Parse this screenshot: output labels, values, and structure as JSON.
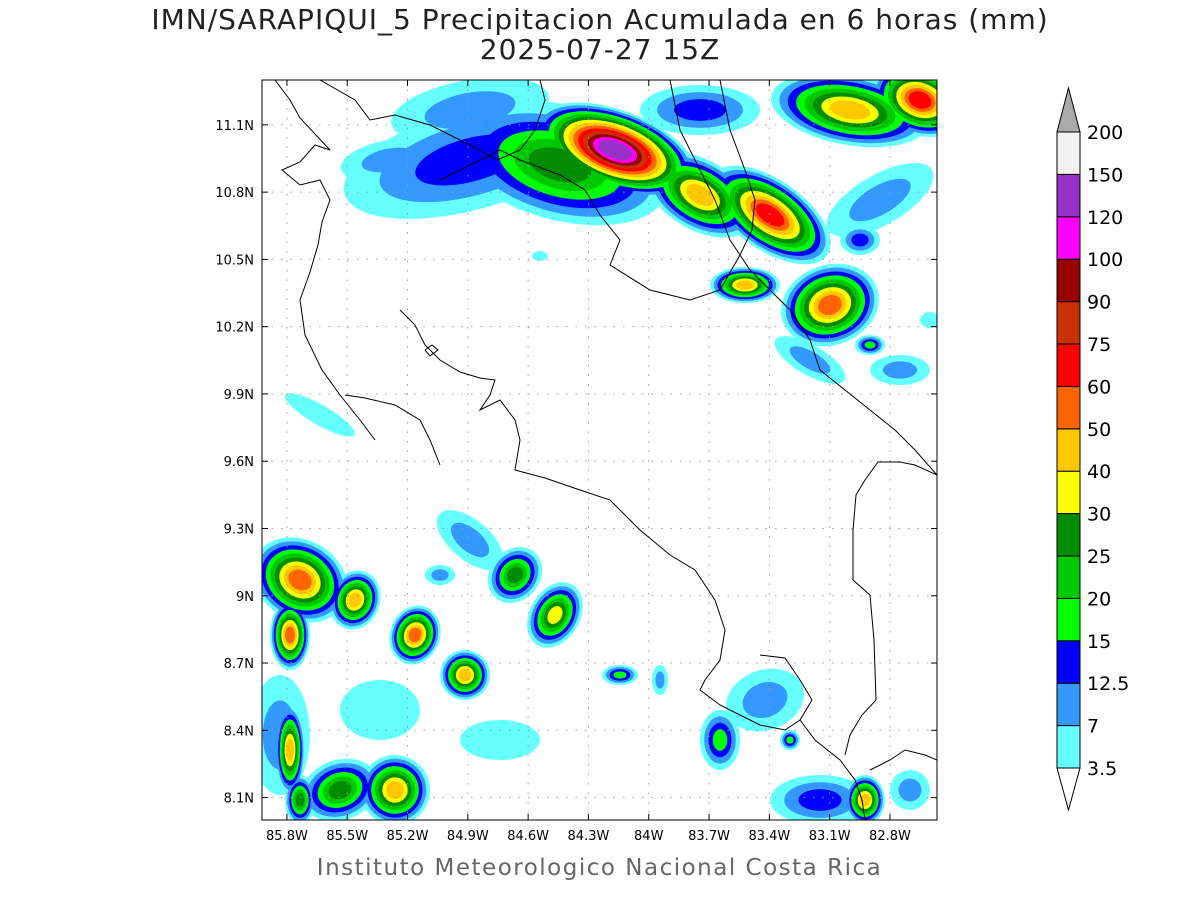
{
  "title": {
    "line1": "IMN/SARAPIQUI_5 Precipitacion Acumulada en 6 horas (mm)",
    "line2": "2025-07-27 15Z"
  },
  "footer": "Instituto Meteorologico Nacional Costa Rica",
  "map": {
    "lon_range": [
      -85.924,
      -82.566
    ],
    "lat_range": [
      8.0,
      11.3
    ],
    "gridlines": "dotted",
    "lon_ticks": [
      {
        "value": -85.8,
        "label": "85.8W"
      },
      {
        "value": -85.5,
        "label": "85.5W"
      },
      {
        "value": -85.2,
        "label": "85.2W"
      },
      {
        "value": -84.9,
        "label": "84.9W"
      },
      {
        "value": -84.6,
        "label": "84.6W"
      },
      {
        "value": -84.3,
        "label": "84.3W"
      },
      {
        "value": -84.0,
        "label": "84W"
      },
      {
        "value": -83.7,
        "label": "83.7W"
      },
      {
        "value": -83.4,
        "label": "83.4W"
      },
      {
        "value": -83.1,
        "label": "83.1W"
      },
      {
        "value": -82.8,
        "label": "82.8W"
      }
    ],
    "lat_ticks": [
      {
        "value": 11.1,
        "label": "11.1N"
      },
      {
        "value": 10.8,
        "label": "10.8N"
      },
      {
        "value": 10.5,
        "label": "10.5N"
      },
      {
        "value": 10.2,
        "label": "10.2N"
      },
      {
        "value": 9.9,
        "label": "9.9N"
      },
      {
        "value": 9.6,
        "label": "9.6N"
      },
      {
        "value": 9.3,
        "label": "9.3N"
      },
      {
        "value": 9.0,
        "label": "9N"
      },
      {
        "value": 8.7,
        "label": "8.7N"
      },
      {
        "value": 8.4,
        "label": "8.4N"
      },
      {
        "value": 8.1,
        "label": "8.1N"
      }
    ]
  },
  "colorbar": {
    "levels": [
      "3.5",
      "7",
      "12.5",
      "15",
      "20",
      "25",
      "30",
      "40",
      "50",
      "60",
      "75",
      "90",
      "100",
      "120",
      "150",
      "200"
    ],
    "colors": [
      "#66ffff",
      "#3399ff",
      "#0000ff",
      "#00ff00",
      "#00c800",
      "#008c00",
      "#ffff00",
      "#ffc800",
      "#ff6400",
      "#ff0000",
      "#c83200",
      "#960000",
      "#ff00ff",
      "#9632c8",
      "#f2f2f2"
    ],
    "over_color": "#aaaaaa",
    "under_color": "#ffffff"
  }
}
